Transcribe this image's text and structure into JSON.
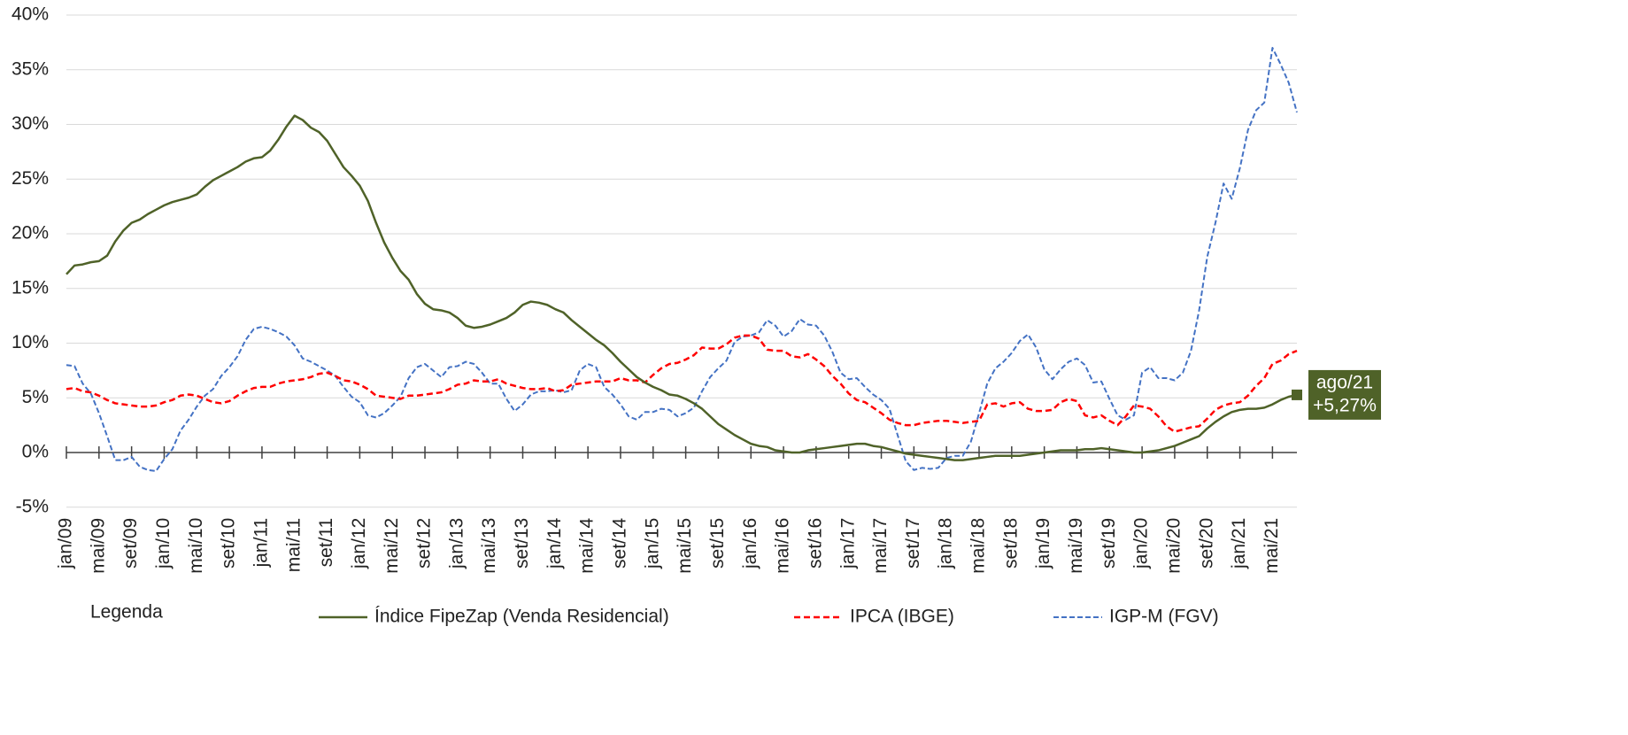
{
  "chart_data": {
    "type": "line",
    "categories": [
      "jan/09",
      null,
      null,
      null,
      "mai/09",
      null,
      null,
      null,
      "set/09",
      null,
      null,
      null,
      "jan/10",
      null,
      null,
      null,
      "mai/10",
      null,
      null,
      null,
      "set/10",
      null,
      null,
      null,
      "jan/11",
      null,
      null,
      null,
      "mai/11",
      null,
      null,
      null,
      "set/11",
      null,
      null,
      null,
      "jan/12",
      null,
      null,
      null,
      "mai/12",
      null,
      null,
      null,
      "set/12",
      null,
      null,
      null,
      "jan/13",
      null,
      null,
      null,
      "mai/13",
      null,
      null,
      null,
      "set/13",
      null,
      null,
      null,
      "jan/14",
      null,
      null,
      null,
      "mai/14",
      null,
      null,
      null,
      "set/14",
      null,
      null,
      null,
      "jan/15",
      null,
      null,
      null,
      "mai/15",
      null,
      null,
      null,
      "set/15",
      null,
      null,
      null,
      "jan/16",
      null,
      null,
      null,
      "mai/16",
      null,
      null,
      null,
      "set/16",
      null,
      null,
      null,
      "jan/17",
      null,
      null,
      null,
      "mai/17",
      null,
      null,
      null,
      "set/17",
      null,
      null,
      null,
      "jan/18",
      null,
      null,
      null,
      "mai/18",
      null,
      null,
      null,
      "set/18",
      null,
      null,
      null,
      "jan/19",
      null,
      null,
      null,
      "mai/19",
      null,
      null,
      null,
      "set/19",
      null,
      null,
      null,
      "jan/20",
      null,
      null,
      null,
      "mai/20",
      null,
      null,
      null,
      "set/20",
      null,
      null,
      null,
      "jan/21",
      null,
      null,
      null,
      "mai/21",
      null,
      null,
      null
    ],
    "series": [
      {
        "name": "Índice FipeZap (Venda Residencial)",
        "color": "#4f6228",
        "style": "solid",
        "values": [
          16.3,
          17.1,
          17.2,
          17.4,
          17.5,
          18.0,
          19.3,
          20.3,
          21.0,
          21.3,
          21.8,
          22.2,
          22.6,
          22.9,
          23.1,
          23.3,
          23.6,
          24.3,
          24.9,
          25.3,
          25.7,
          26.1,
          26.6,
          26.9,
          27.0,
          27.6,
          28.6,
          29.8,
          30.8,
          30.4,
          29.7,
          29.3,
          28.5,
          27.3,
          26.1,
          25.3,
          24.4,
          23.0,
          21.0,
          19.2,
          17.8,
          16.6,
          15.8,
          14.5,
          13.6,
          13.1,
          13.0,
          12.8,
          12.3,
          11.6,
          11.4,
          11.5,
          11.7,
          12.0,
          12.3,
          12.8,
          13.5,
          13.8,
          13.7,
          13.5,
          13.1,
          12.8,
          12.1,
          11.5,
          10.9,
          10.3,
          9.8,
          9.1,
          8.3,
          7.6,
          6.9,
          6.4,
          6.0,
          5.7,
          5.3,
          5.2,
          4.9,
          4.5,
          4.0,
          3.3,
          2.6,
          2.1,
          1.6,
          1.2,
          0.8,
          0.6,
          0.5,
          0.2,
          0.1,
          0.0,
          0.0,
          0.2,
          0.3,
          0.4,
          0.5,
          0.6,
          0.7,
          0.8,
          0.8,
          0.6,
          0.5,
          0.3,
          0.1,
          -0.1,
          -0.2,
          -0.3,
          -0.4,
          -0.5,
          -0.6,
          -0.7,
          -0.7,
          -0.6,
          -0.5,
          -0.4,
          -0.3,
          -0.3,
          -0.3,
          -0.3,
          -0.2,
          -0.1,
          0.0,
          0.1,
          0.2,
          0.2,
          0.2,
          0.3,
          0.3,
          0.4,
          0.3,
          0.2,
          0.1,
          0.0,
          0.0,
          0.1,
          0.2,
          0.4,
          0.6,
          0.9,
          1.2,
          1.5,
          2.2,
          2.8,
          3.3,
          3.7,
          3.9,
          4.0,
          4.0,
          4.1,
          4.4,
          4.8,
          5.1,
          5.27
        ]
      },
      {
        "name": "IPCA (IBGE)",
        "color": "#ff0000",
        "style": "dashed",
        "values": [
          5.8,
          5.9,
          5.6,
          5.5,
          5.2,
          4.8,
          4.5,
          4.4,
          4.3,
          4.2,
          4.2,
          4.3,
          4.6,
          4.8,
          5.2,
          5.3,
          5.2,
          4.9,
          4.6,
          4.5,
          4.7,
          5.2,
          5.6,
          5.9,
          6.0,
          6.0,
          6.3,
          6.5,
          6.6,
          6.7,
          6.9,
          7.2,
          7.3,
          7.0,
          6.6,
          6.5,
          6.2,
          5.8,
          5.2,
          5.1,
          5.0,
          4.9,
          5.2,
          5.2,
          5.3,
          5.4,
          5.5,
          5.8,
          6.2,
          6.3,
          6.6,
          6.5,
          6.5,
          6.7,
          6.3,
          6.1,
          5.9,
          5.8,
          5.8,
          5.9,
          5.6,
          5.7,
          6.2,
          6.3,
          6.4,
          6.5,
          6.5,
          6.5,
          6.8,
          6.6,
          6.6,
          6.4,
          7.1,
          7.7,
          8.1,
          8.2,
          8.5,
          8.9,
          9.6,
          9.5,
          9.5,
          9.9,
          10.5,
          10.7,
          10.7,
          10.4,
          9.4,
          9.3,
          9.3,
          8.8,
          8.7,
          9.0,
          8.5,
          7.9,
          7.0,
          6.3,
          5.4,
          4.8,
          4.6,
          4.1,
          3.6,
          3.0,
          2.7,
          2.5,
          2.5,
          2.7,
          2.8,
          2.9,
          2.9,
          2.8,
          2.7,
          2.8,
          2.9,
          4.4,
          4.5,
          4.2,
          4.5,
          4.6,
          4.0,
          3.8,
          3.8,
          3.9,
          4.6,
          4.9,
          4.7,
          3.4,
          3.2,
          3.4,
          2.9,
          2.5,
          3.3,
          4.3,
          4.2,
          4.0,
          3.3,
          2.4,
          1.9,
          2.1,
          2.3,
          2.4,
          3.1,
          3.9,
          4.3,
          4.5,
          4.6,
          5.2,
          6.1,
          6.8,
          8.1,
          8.4,
          9.0,
          9.3
        ]
      },
      {
        "name": "IGP-M (FGV)",
        "color": "#4472c4",
        "style": "dashed-thin",
        "values": [
          8.0,
          7.9,
          6.3,
          5.4,
          3.6,
          1.5,
          -0.7,
          -0.7,
          -0.4,
          -1.3,
          -1.6,
          -1.7,
          -0.6,
          0.3,
          2.0,
          3.0,
          4.2,
          5.2,
          5.8,
          7.0,
          7.8,
          8.8,
          10.3,
          11.3,
          11.5,
          11.3,
          11.0,
          10.6,
          9.8,
          8.6,
          8.3,
          7.9,
          7.5,
          7.0,
          6.0,
          5.1,
          4.6,
          3.4,
          3.2,
          3.6,
          4.3,
          5.1,
          6.8,
          7.8,
          8.1,
          7.5,
          6.9,
          7.8,
          7.9,
          8.3,
          8.1,
          7.3,
          6.3,
          6.3,
          4.9,
          3.8,
          4.4,
          5.3,
          5.6,
          5.6,
          5.7,
          5.5,
          5.7,
          7.5,
          8.1,
          7.8,
          6.0,
          5.3,
          4.4,
          3.3,
          3.0,
          3.7,
          3.7,
          4.0,
          3.9,
          3.3,
          3.6,
          4.1,
          5.6,
          6.9,
          7.7,
          8.4,
          10.1,
          10.6,
          10.7,
          11.0,
          12.1,
          11.6,
          10.6,
          11.1,
          12.2,
          11.7,
          11.6,
          10.7,
          9.2,
          7.3,
          6.7,
          6.8,
          6.0,
          5.3,
          4.8,
          4.0,
          1.6,
          -0.8,
          -1.6,
          -1.4,
          -1.5,
          -1.4,
          -0.5,
          -0.3,
          -0.3,
          1.0,
          3.6,
          6.3,
          7.7,
          8.3,
          9.1,
          10.2,
          10.8,
          9.6,
          7.6,
          6.7,
          7.6,
          8.3,
          8.6,
          8.0,
          6.4,
          6.5,
          4.9,
          3.4,
          3.0,
          3.4,
          7.3,
          7.8,
          6.8,
          6.8,
          6.6,
          7.3,
          9.3,
          13.0,
          17.9,
          21.0,
          24.6,
          23.2,
          26.0,
          29.5,
          31.3,
          32.0,
          37.0,
          35.5,
          33.8,
          31.1
        ]
      }
    ],
    "ylim": [
      -5,
      40
    ],
    "yticks": [
      {
        "value": -5,
        "label": "-5%"
      },
      {
        "value": 0,
        "label": "0%"
      },
      {
        "value": 5,
        "label": "5%"
      },
      {
        "value": 10,
        "label": "10%"
      },
      {
        "value": 15,
        "label": "15%"
      },
      {
        "value": 20,
        "label": "20%"
      },
      {
        "value": 25,
        "label": "25%"
      },
      {
        "value": 30,
        "label": "30%"
      },
      {
        "value": 35,
        "label": "35%"
      },
      {
        "value": 40,
        "label": "40%"
      }
    ],
    "grid": true,
    "legend_title": "Legenda",
    "legend": "bottom",
    "annotation": {
      "date": "ago/21",
      "text": "+5,27%",
      "color": "#4f6228"
    }
  }
}
